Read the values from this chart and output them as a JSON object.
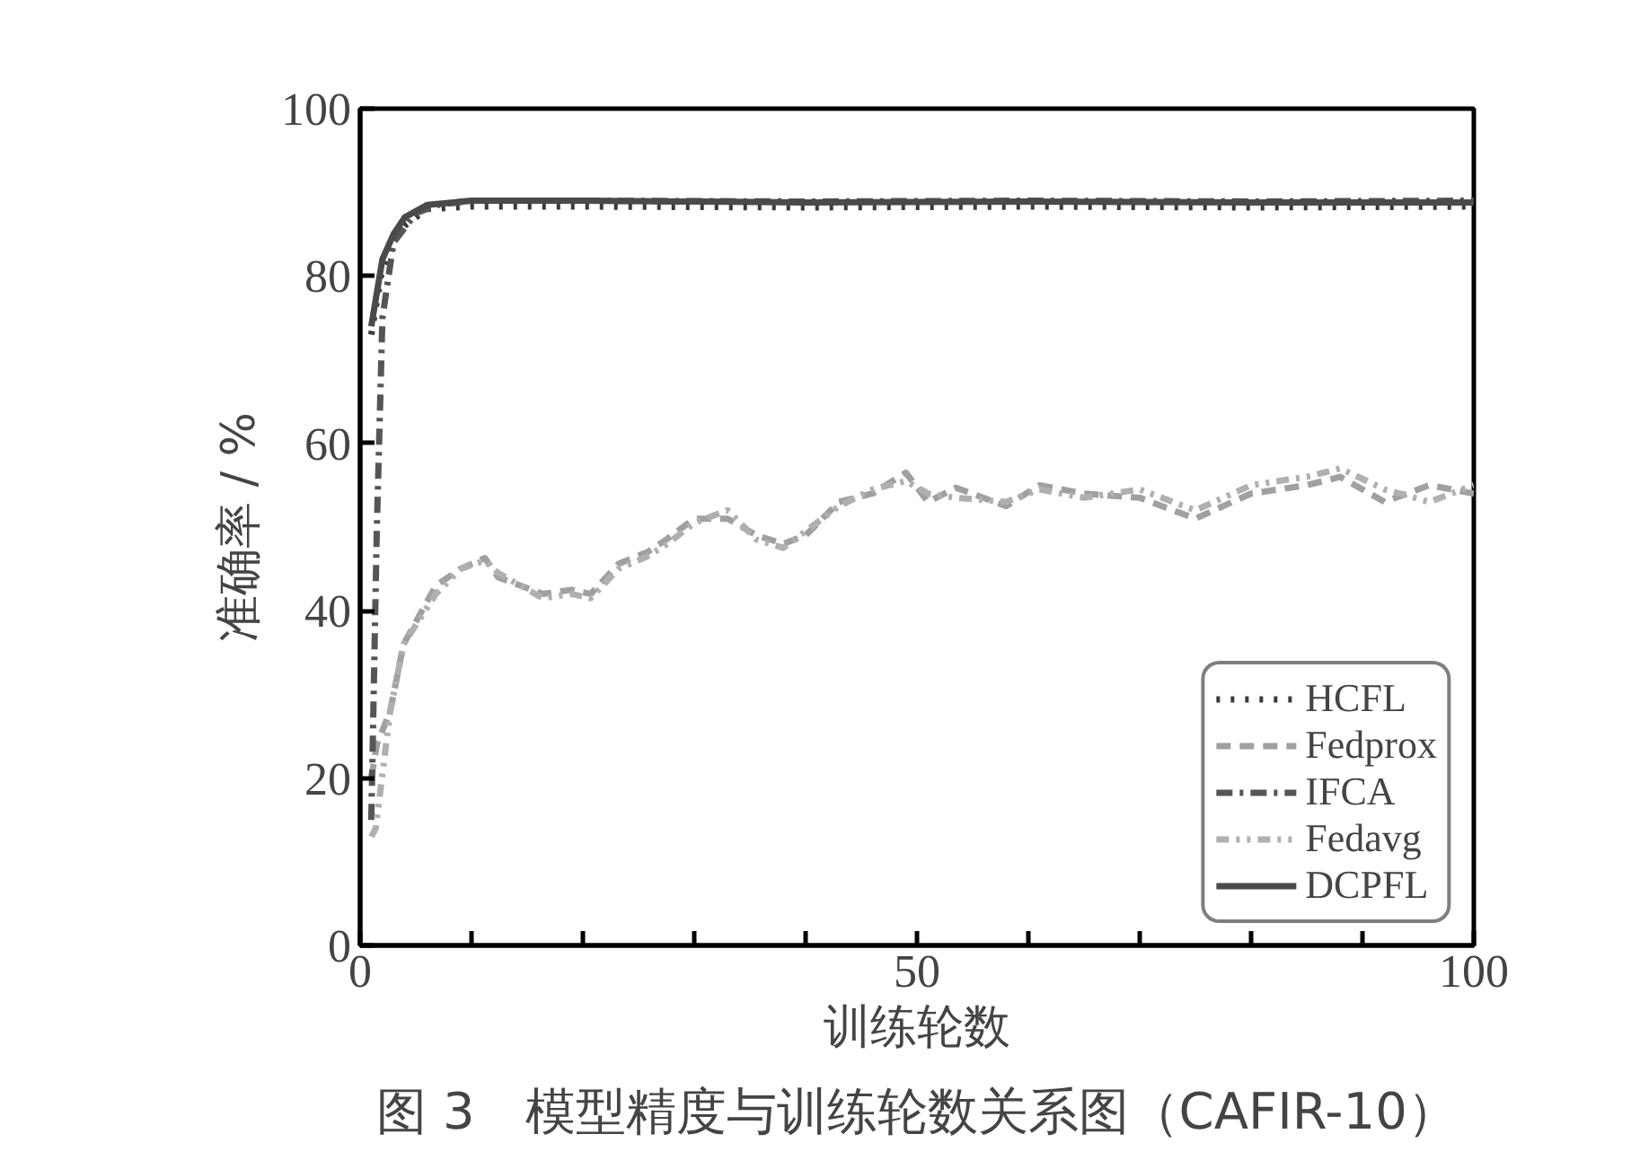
{
  "chart_data": {
    "type": "line",
    "xlabel": "训练轮数",
    "ylabel": "准确率 / %",
    "annotations": [
      "图 3　模型精度与训练轮数关系图（CAFIR-10）"
    ],
    "xlim": [
      0,
      100
    ],
    "ylim": [
      0,
      100
    ],
    "xticks": [
      0,
      {
        "value": 10,
        "label": null
      },
      {
        "value": 20,
        "label": null
      },
      {
        "value": 30,
        "label": null
      },
      {
        "value": 40,
        "label": null
      },
      50,
      {
        "value": 60,
        "label": null
      },
      {
        "value": 70,
        "label": null
      },
      {
        "value": 80,
        "label": null
      },
      {
        "value": 90,
        "label": null
      },
      100
    ],
    "yticks": [
      0,
      20,
      40,
      60,
      80,
      100
    ],
    "grid": false,
    "legend": "bottom right",
    "marker": "none",
    "series": [
      {
        "name": "HCFL",
        "color": "#3a3a3a",
        "line_style": "dotted",
        "x": [
          1,
          2,
          3,
          4,
          6,
          10,
          20,
          40,
          60,
          80,
          100
        ],
        "values": [
          73,
          81,
          84,
          86,
          88,
          88.3,
          88.3,
          88.2,
          88.3,
          88.2,
          88.3
        ]
      },
      {
        "name": "Fedprox",
        "color": "#a0a0a0",
        "line_style": "dashed",
        "x": [
          1,
          1.5,
          2.7,
          3.9,
          6.8,
          9,
          11.2,
          12.4,
          16.4,
          19,
          20.7,
          23.2,
          25.8,
          27.6,
          30,
          33,
          35.6,
          38,
          40,
          43,
          46,
          49,
          51,
          53.5,
          58,
          61,
          65,
          70,
          75,
          80,
          85,
          88,
          92,
          96,
          100
        ],
        "values": [
          20,
          24,
          28,
          36,
          43,
          45,
          46.3,
          44,
          42,
          42.5,
          42,
          45.6,
          47,
          48.6,
          51,
          51,
          49,
          48,
          49,
          53,
          54,
          56.5,
          53,
          54.7,
          52.5,
          55,
          54,
          53.5,
          51,
          54,
          55,
          56,
          53,
          55,
          54
        ]
      },
      {
        "name": "IFCA",
        "color": "#555555",
        "line_style": "dashdot",
        "x": [
          1,
          1.5,
          2,
          3,
          5,
          7,
          10,
          20,
          40,
          60,
          80,
          100
        ],
        "values": [
          15,
          50,
          75,
          84,
          87.5,
          88.5,
          89,
          89,
          88.9,
          89,
          88.9,
          89
        ]
      },
      {
        "name": "Fedavg",
        "color": "#b0b0b0",
        "line_style": "dashdotdot",
        "x": [
          1,
          1.4,
          2.7,
          3.9,
          6.8,
          9,
          11.2,
          12.4,
          16.4,
          19,
          20.7,
          23.2,
          25.8,
          27.6,
          30,
          33,
          35.6,
          38,
          40,
          43,
          46,
          49,
          51,
          53.5,
          58,
          61,
          65,
          70,
          75,
          80,
          85,
          88,
          92,
          96,
          100
        ],
        "values": [
          13,
          14,
          28,
          36,
          42,
          45,
          46,
          44.5,
          41.5,
          42,
          41.5,
          45,
          46.5,
          48,
          50.5,
          52,
          48.5,
          47.5,
          49.5,
          52.5,
          54.5,
          55.5,
          54,
          53.5,
          53,
          54.5,
          53.5,
          54.5,
          52,
          55,
          56,
          57,
          54.5,
          53,
          55
        ]
      },
      {
        "name": "DCPFL",
        "color": "#4a4a4a",
        "line_style": "solid",
        "x": [
          1,
          2,
          3,
          4,
          6,
          10,
          20,
          40,
          60,
          80,
          100
        ],
        "values": [
          74,
          82,
          85,
          87,
          88.5,
          89,
          89,
          88.8,
          88.9,
          88.8,
          88.8
        ]
      }
    ]
  }
}
